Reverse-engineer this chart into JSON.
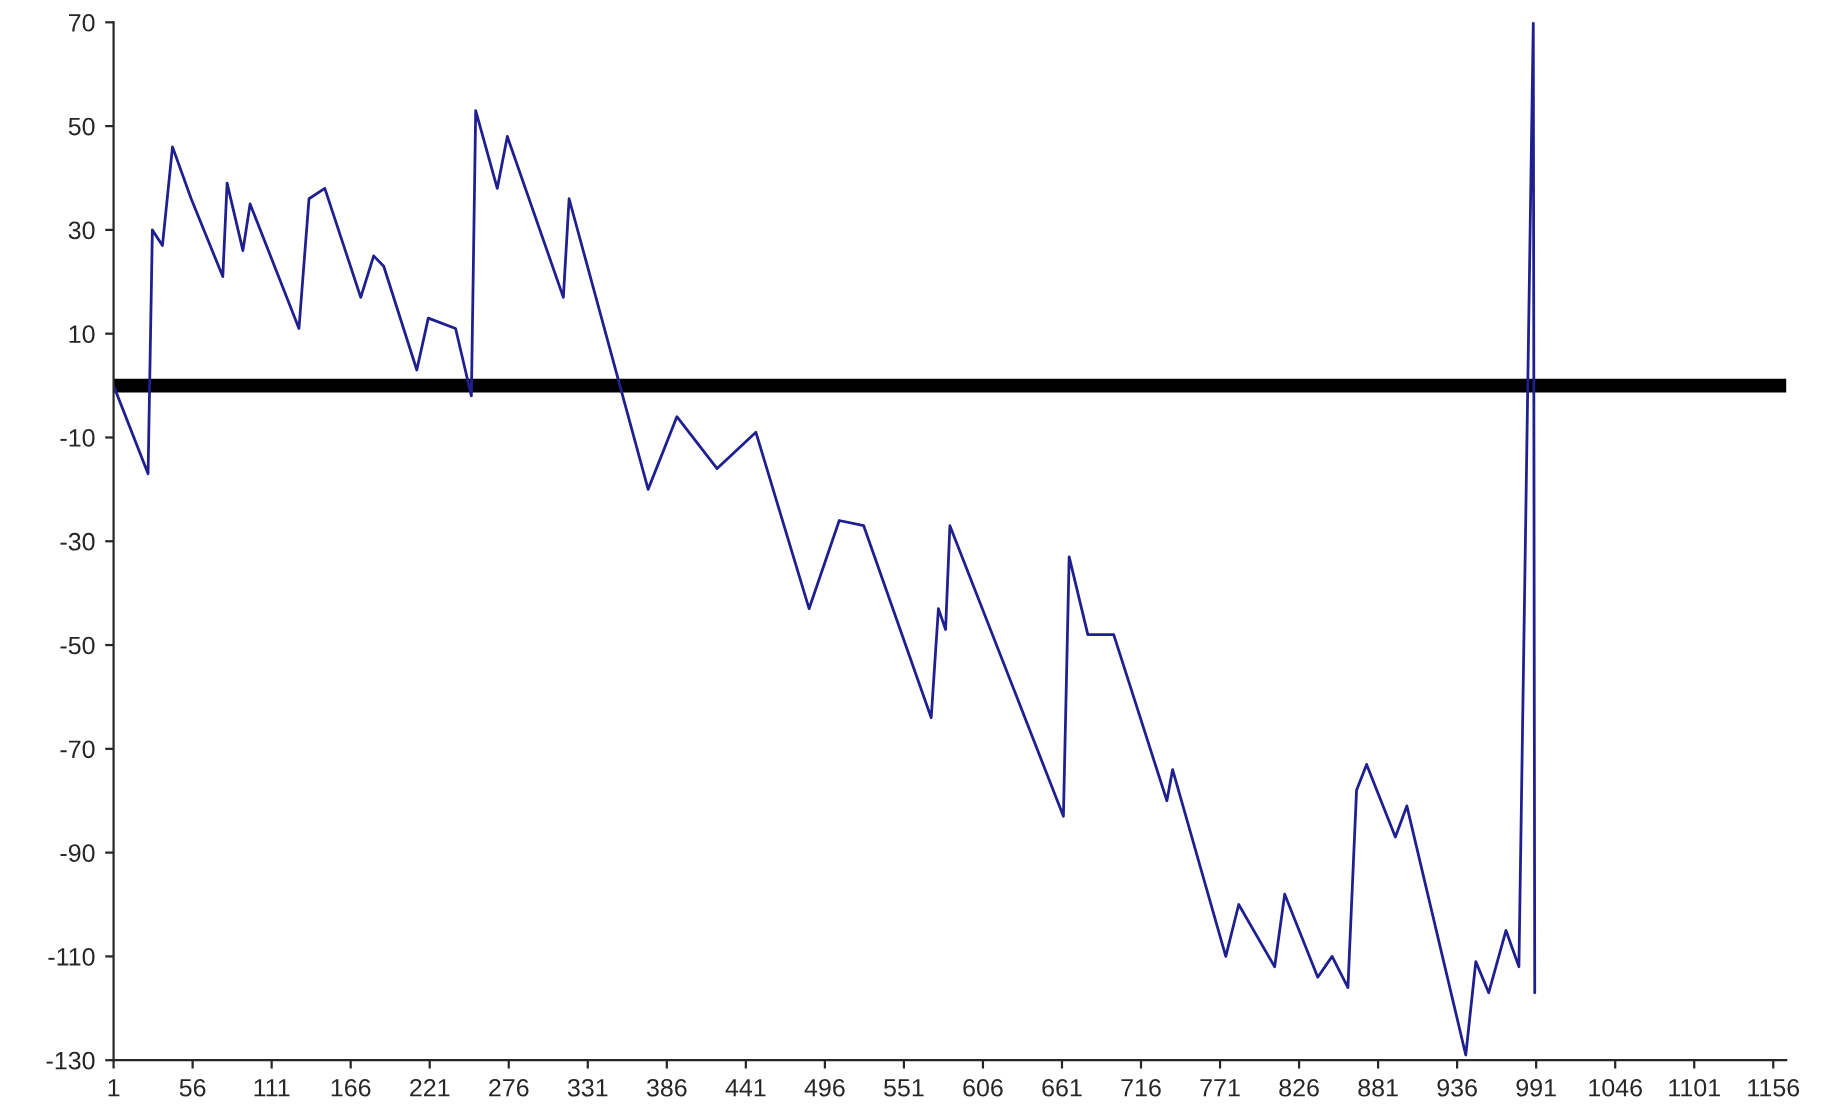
{
  "chart_data": {
    "type": "line",
    "xlim": [
      1,
      1165
    ],
    "xticks": [
      1,
      56,
      111,
      166,
      221,
      276,
      331,
      386,
      441,
      496,
      551,
      606,
      661,
      716,
      771,
      826,
      881,
      936,
      991,
      1046,
      1101,
      1156
    ],
    "ylim": [
      -130,
      70
    ],
    "yticks": [
      -130,
      -110,
      -90,
      -70,
      -50,
      -30,
      -10,
      10,
      30,
      50,
      70
    ],
    "grid": false,
    "marker": "none",
    "line_style": "solid",
    "ref_lines": [
      {
        "axis": "y",
        "value": 0,
        "color": "#000000"
      }
    ],
    "series": [
      {
        "color": "#1f1f8f",
        "x": [
          1,
          25,
          28,
          35,
          42,
          55,
          77,
          80,
          91,
          96,
          130,
          137,
          148,
          173,
          182,
          189,
          212,
          220,
          239,
          250,
          253,
          268,
          275,
          314,
          318,
          373,
          393,
          421,
          448,
          485,
          506,
          523,
          570,
          575,
          580,
          583,
          662,
          666,
          679,
          697,
          734,
          738,
          775,
          784,
          809,
          816,
          839,
          849,
          860,
          866,
          873,
          893,
          901,
          942,
          949,
          958,
          970,
          979,
          989,
          990
        ],
        "values": [
          0,
          -17,
          30,
          27,
          46,
          36,
          21,
          39,
          26,
          35,
          11,
          36,
          38,
          17,
          25,
          23,
          3,
          13,
          11,
          -2,
          53,
          38,
          48,
          17,
          36,
          -20,
          -6,
          -16,
          -9,
          -43,
          -26,
          -27,
          -64,
          -43,
          -47,
          -27,
          -83,
          -33,
          -48,
          -48,
          -80,
          -74,
          -110,
          -100,
          -112,
          -98,
          -114,
          -110,
          -116,
          -78,
          -73,
          -87,
          -81,
          -129,
          -111,
          -117,
          -105,
          -112,
          70,
          -117
        ]
      }
    ]
  }
}
